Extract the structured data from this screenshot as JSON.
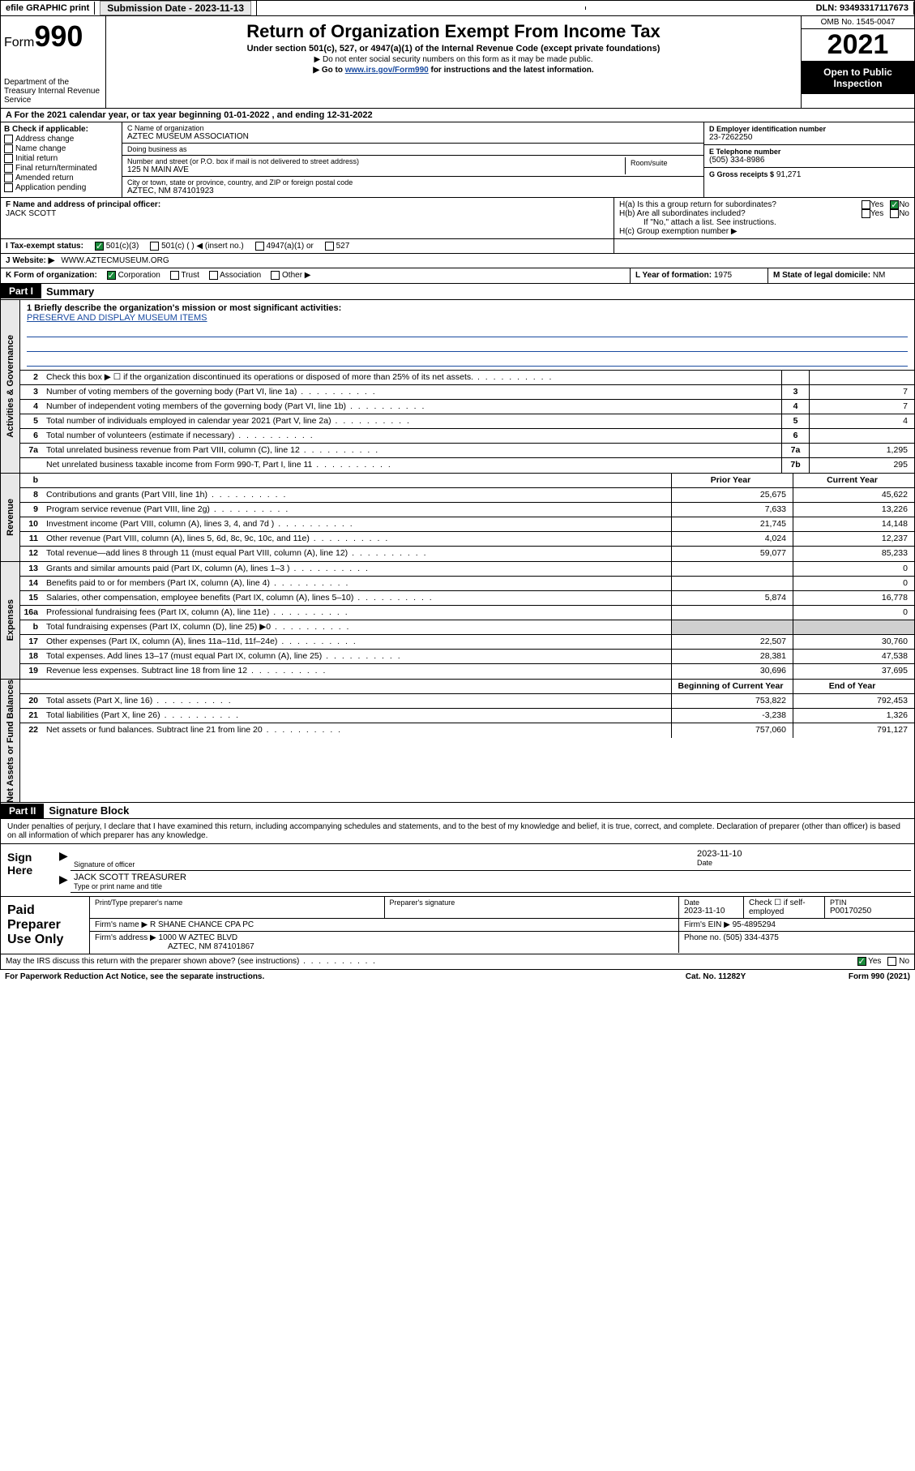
{
  "top": {
    "efile": "efile GRAPHIC print",
    "submission_label": "Submission Date - 2023-11-13",
    "dln": "DLN: 93493317117673"
  },
  "header": {
    "form_prefix": "Form",
    "form_num": "990",
    "title": "Return of Organization Exempt From Income Tax",
    "subtitle": "Under section 501(c), 527, or 4947(a)(1) of the Internal Revenue Code (except private foundations)",
    "note1": "▶ Do not enter social security numbers on this form as it may be made public.",
    "note2_pre": "▶ Go to ",
    "note2_link": "www.irs.gov/Form990",
    "note2_post": " for instructions and the latest information.",
    "dept": "Department of the Treasury Internal Revenue Service",
    "omb": "OMB No. 1545-0047",
    "year": "2021",
    "open": "Open to Public Inspection"
  },
  "row_a": "A For the 2021 calendar year, or tax year beginning 01-01-2022   , and ending 12-31-2022",
  "box_b": {
    "hdr": "B Check if applicable:",
    "opts": [
      "Address change",
      "Name change",
      "Initial return",
      "Final return/terminated",
      "Amended return",
      "Application pending"
    ]
  },
  "box_c": {
    "name_lbl": "C Name of organization",
    "name": "AZTEC MUSEUM ASSOCIATION",
    "dba_lbl": "Doing business as",
    "dba": "",
    "addr_lbl": "Number and street (or P.O. box if mail is not delivered to street address)",
    "room_lbl": "Room/suite",
    "addr": "125 N MAIN AVE",
    "city_lbl": "City or town, state or province, country, and ZIP or foreign postal code",
    "city": "AZTEC, NM  874101923"
  },
  "box_d": {
    "lbl": "D Employer identification number",
    "val": "23-7262250"
  },
  "box_e": {
    "lbl": "E Telephone number",
    "val": "(505) 334-8986"
  },
  "box_g": {
    "lbl": "G Gross receipts $",
    "val": "91,271"
  },
  "box_f": {
    "lbl": "F Name and address of principal officer:",
    "val": "JACK SCOTT"
  },
  "box_h": {
    "ha": "H(a)  Is this a group return for subordinates?",
    "hb": "H(b)  Are all subordinates included?",
    "hb_note": "If \"No,\" attach a list. See instructions.",
    "hc": "H(c)  Group exemption number ▶"
  },
  "row_i": {
    "lbl": "I    Tax-exempt status:",
    "opt1": "501(c)(3)",
    "opt2": "501(c) (  ) ◀ (insert no.)",
    "opt3": "4947(a)(1) or",
    "opt4": "527"
  },
  "row_j": {
    "lbl": "J   Website: ▶",
    "val": "WWW.AZTECMUSEUM.ORG"
  },
  "row_k": {
    "lbl": "K Form of organization:",
    "opts": [
      "Corporation",
      "Trust",
      "Association",
      "Other ▶"
    ]
  },
  "row_l": {
    "lbl": "L Year of formation:",
    "val": "1975"
  },
  "row_m": {
    "lbl": "M State of legal domicile:",
    "val": "NM"
  },
  "part1": {
    "hdr": "Part I",
    "title": "Summary"
  },
  "mission": {
    "q": "1   Briefly describe the organization's mission or most significant activities:",
    "a": "PRESERVE AND DISPLAY MUSEUM ITEMS"
  },
  "gov_rows": [
    {
      "n": "2",
      "d": "Check this box ▶ ☐  if the organization discontinued its operations or disposed of more than 25% of its net assets.",
      "box": "",
      "v": ""
    },
    {
      "n": "3",
      "d": "Number of voting members of the governing body (Part VI, line 1a)",
      "box": "3",
      "v": "7"
    },
    {
      "n": "4",
      "d": "Number of independent voting members of the governing body (Part VI, line 1b)",
      "box": "4",
      "v": "7"
    },
    {
      "n": "5",
      "d": "Total number of individuals employed in calendar year 2021 (Part V, line 2a)",
      "box": "5",
      "v": "4"
    },
    {
      "n": "6",
      "d": "Total number of volunteers (estimate if necessary)",
      "box": "6",
      "v": ""
    },
    {
      "n": "7a",
      "d": "Total unrelated business revenue from Part VIII, column (C), line 12",
      "box": "7a",
      "v": "1,295"
    },
    {
      "n": "",
      "d": "Net unrelated business taxable income from Form 990-T, Part I, line 11",
      "box": "7b",
      "v": "295"
    }
  ],
  "rev_hdr": {
    "prior": "Prior Year",
    "curr": "Current Year"
  },
  "rev_rows": [
    {
      "n": "8",
      "d": "Contributions and grants (Part VIII, line 1h)",
      "p": "25,675",
      "c": "45,622"
    },
    {
      "n": "9",
      "d": "Program service revenue (Part VIII, line 2g)",
      "p": "7,633",
      "c": "13,226"
    },
    {
      "n": "10",
      "d": "Investment income (Part VIII, column (A), lines 3, 4, and 7d )",
      "p": "21,745",
      "c": "14,148"
    },
    {
      "n": "11",
      "d": "Other revenue (Part VIII, column (A), lines 5, 6d, 8c, 9c, 10c, and 11e)",
      "p": "4,024",
      "c": "12,237"
    },
    {
      "n": "12",
      "d": "Total revenue—add lines 8 through 11 (must equal Part VIII, column (A), line 12)",
      "p": "59,077",
      "c": "85,233"
    }
  ],
  "exp_rows": [
    {
      "n": "13",
      "d": "Grants and similar amounts paid (Part IX, column (A), lines 1–3 )",
      "p": "",
      "c": "0"
    },
    {
      "n": "14",
      "d": "Benefits paid to or for members (Part IX, column (A), line 4)",
      "p": "",
      "c": "0"
    },
    {
      "n": "15",
      "d": "Salaries, other compensation, employee benefits (Part IX, column (A), lines 5–10)",
      "p": "5,874",
      "c": "16,778"
    },
    {
      "n": "16a",
      "d": "Professional fundraising fees (Part IX, column (A), line 11e)",
      "p": "",
      "c": "0"
    },
    {
      "n": "b",
      "d": "Total fundraising expenses (Part IX, column (D), line 25) ▶0",
      "p": "grey",
      "c": "grey"
    },
    {
      "n": "17",
      "d": "Other expenses (Part IX, column (A), lines 11a–11d, 11f–24e)",
      "p": "22,507",
      "c": "30,760"
    },
    {
      "n": "18",
      "d": "Total expenses. Add lines 13–17 (must equal Part IX, column (A), line 25)",
      "p": "28,381",
      "c": "47,538"
    },
    {
      "n": "19",
      "d": "Revenue less expenses. Subtract line 18 from line 12",
      "p": "30,696",
      "c": "37,695"
    }
  ],
  "na_hdr": {
    "prior": "Beginning of Current Year",
    "curr": "End of Year"
  },
  "na_rows": [
    {
      "n": "20",
      "d": "Total assets (Part X, line 16)",
      "p": "753,822",
      "c": "792,453"
    },
    {
      "n": "21",
      "d": "Total liabilities (Part X, line 26)",
      "p": "-3,238",
      "c": "1,326"
    },
    {
      "n": "22",
      "d": "Net assets or fund balances. Subtract line 21 from line 20",
      "p": "757,060",
      "c": "791,127"
    }
  ],
  "side_tabs": {
    "gov": "Activities & Governance",
    "rev": "Revenue",
    "exp": "Expenses",
    "na": "Net Assets or Fund Balances"
  },
  "part2": {
    "hdr": "Part II",
    "title": "Signature Block"
  },
  "sig": {
    "declare": "Under penalties of perjury, I declare that I have examined this return, including accompanying schedules and statements, and to the best of my knowledge and belief, it is true, correct, and complete. Declaration of preparer (other than officer) is based on all information of which preparer has any knowledge.",
    "sign_here": "Sign Here",
    "off_sig_lbl": "Signature of officer",
    "off_date": "2023-11-10",
    "off_date_lbl": "Date",
    "off_name": "JACK SCOTT TREASURER",
    "off_name_lbl": "Type or print name and title"
  },
  "prep": {
    "title": "Paid Preparer Use Only",
    "name_lbl": "Print/Type preparer's name",
    "sig_lbl": "Preparer's signature",
    "date_lbl": "Date",
    "date": "2023-11-10",
    "self_lbl": "Check ☐ if self-employed",
    "ptin_lbl": "PTIN",
    "ptin": "P00170250",
    "firm_name_lbl": "Firm's name    ▶",
    "firm_name": "R SHANE CHANCE CPA PC",
    "firm_ein_lbl": "Firm's EIN ▶",
    "firm_ein": "95-4895294",
    "firm_addr_lbl": "Firm's address ▶",
    "firm_addr1": "1000 W AZTEC BLVD",
    "firm_addr2": "AZTEC, NM  874101867",
    "phone_lbl": "Phone no.",
    "phone": "(505) 334-4375"
  },
  "footer": {
    "discuss": "May the IRS discuss this return with the preparer shown above? (see instructions)",
    "pra": "For Paperwork Reduction Act Notice, see the separate instructions.",
    "cat": "Cat. No. 11282Y",
    "form": "Form 990 (2021)"
  },
  "colors": {
    "link": "#1a4ba0",
    "check_green": "#1a8a3a",
    "grey_bg": "#d0d0d0",
    "side_bg": "#e8e8e8"
  }
}
